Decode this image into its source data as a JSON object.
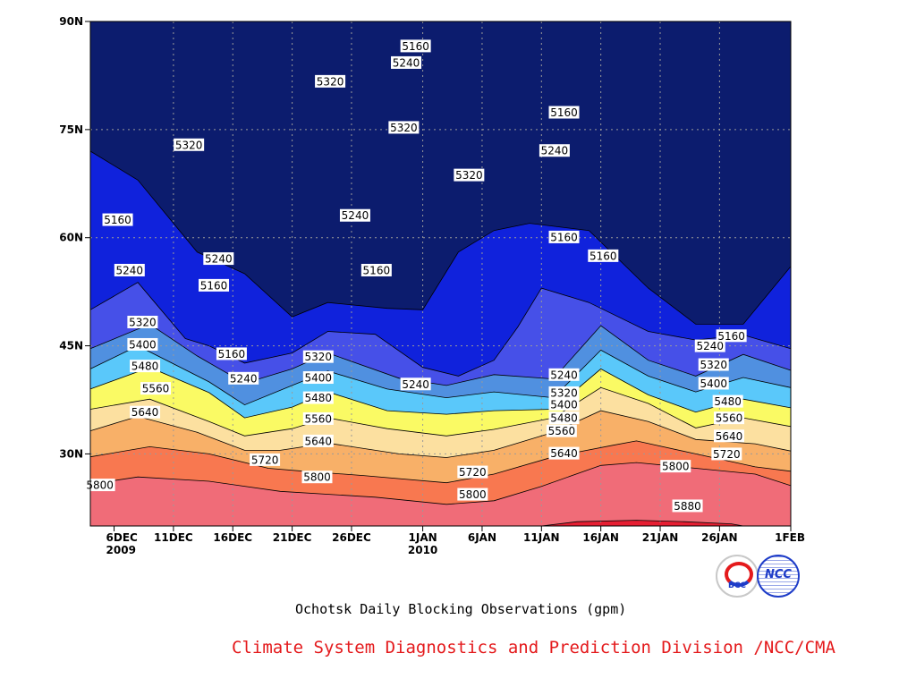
{
  "chart_data": {
    "type": "contour",
    "title": "",
    "xlabel": "",
    "ylabel": "",
    "x_tick_labels": [
      {
        "line1": "6DEC",
        "line2": "2009"
      },
      {
        "line1": "11DEC",
        "line2": ""
      },
      {
        "line1": "16DEC",
        "line2": ""
      },
      {
        "line1": "21DEC",
        "line2": ""
      },
      {
        "line1": "26DEC",
        "line2": ""
      },
      {
        "line1": "1JAN",
        "line2": "2010"
      },
      {
        "line1": "6JAN",
        "line2": ""
      },
      {
        "line1": "11JAN",
        "line2": ""
      },
      {
        "line1": "16JAN",
        "line2": ""
      },
      {
        "line1": "21JAN",
        "line2": ""
      },
      {
        "line1": "26JAN",
        "line2": ""
      },
      {
        "line1": "1FEB",
        "line2": ""
      }
    ],
    "x_tick_days": [
      6,
      11,
      16,
      21,
      26,
      32,
      37,
      42,
      47,
      52,
      57,
      63
    ],
    "xlim_days": [
      4,
      63
    ],
    "y_tick_labels": [
      "30N",
      "45N",
      "60N",
      "75N",
      "90N"
    ],
    "y_tick_values": [
      30,
      45,
      60,
      75,
      90
    ],
    "ylim": [
      20,
      90
    ],
    "grid": true,
    "levels": [
      5160,
      5240,
      5320,
      5400,
      5480,
      5560,
      5640,
      5720,
      5800,
      5880
    ],
    "colors": [
      "#0c1c6e",
      "#1022dc",
      "#4650e8",
      "#5090e0",
      "#5ac8fa",
      "#fafa64",
      "#fce0a0",
      "#f8b068",
      "#f87850",
      "#f06c78",
      "#e61e32"
    ],
    "boundaries": [
      {
        "level": 5880,
        "points": [
          [
            20,
            42
          ],
          [
            20.6,
            45
          ],
          [
            20.8,
            50
          ],
          [
            20.6,
            54
          ],
          [
            20.3,
            58
          ],
          [
            20,
            59
          ]
        ]
      },
      {
        "level": 5800,
        "points": [
          [
            25.8,
            4
          ],
          [
            26.8,
            8
          ],
          [
            26.2,
            14
          ],
          [
            24.8,
            20
          ],
          [
            24,
            28
          ],
          [
            23,
            34
          ],
          [
            23.5,
            38
          ],
          [
            25.5,
            42
          ],
          [
            28.4,
            47
          ],
          [
            28.8,
            50
          ],
          [
            28,
            55
          ],
          [
            27.2,
            60
          ],
          [
            25.6,
            63
          ]
        ]
      },
      {
        "level": 5720,
        "points": [
          [
            29.6,
            4
          ],
          [
            31,
            9
          ],
          [
            30,
            14
          ],
          [
            28,
            19
          ],
          [
            27.6,
            22
          ],
          [
            27,
            27
          ],
          [
            26,
            34
          ],
          [
            27.2,
            38
          ],
          [
            29.6,
            43
          ],
          [
            31.2,
            48
          ],
          [
            31.8,
            50
          ],
          [
            30,
            55
          ],
          [
            28.2,
            60
          ],
          [
            27.6,
            63
          ]
        ]
      },
      {
        "level": 5640,
        "points": [
          [
            33.2,
            4
          ],
          [
            35.2,
            8
          ],
          [
            33,
            13
          ],
          [
            30.5,
            17
          ],
          [
            30.5,
            20
          ],
          [
            31.5,
            24
          ],
          [
            30,
            30
          ],
          [
            29.5,
            34
          ],
          [
            30.5,
            38
          ],
          [
            33,
            43
          ],
          [
            36,
            47
          ],
          [
            34.5,
            51
          ],
          [
            32,
            55
          ],
          [
            31.4,
            60
          ],
          [
            30.4,
            63
          ]
        ]
      },
      {
        "level": 5560,
        "points": [
          [
            36.2,
            4
          ],
          [
            37.6,
            9
          ],
          [
            34.5,
            14
          ],
          [
            32.5,
            17
          ],
          [
            33.5,
            21
          ],
          [
            35,
            24
          ],
          [
            33.5,
            29
          ],
          [
            32.5,
            34
          ],
          [
            33.4,
            38
          ],
          [
            35,
            43
          ],
          [
            39.2,
            47
          ],
          [
            37,
            51
          ],
          [
            33.6,
            55
          ],
          [
            35,
            59
          ],
          [
            33.8,
            63
          ]
        ]
      },
      {
        "level": 5480,
        "points": [
          [
            39,
            4
          ],
          [
            42,
            9
          ],
          [
            38.5,
            14
          ],
          [
            35,
            17
          ],
          [
            36.5,
            21
          ],
          [
            38.6,
            24
          ],
          [
            36,
            29
          ],
          [
            35.5,
            34
          ],
          [
            36,
            38
          ],
          [
            36.2,
            43
          ],
          [
            41.8,
            47
          ],
          [
            38.2,
            51
          ],
          [
            35.8,
            55
          ],
          [
            37.6,
            59
          ],
          [
            36.4,
            63
          ]
        ]
      },
      {
        "level": 5400,
        "points": [
          [
            41.8,
            4
          ],
          [
            45,
            8
          ],
          [
            40,
            14
          ],
          [
            36.8,
            17
          ],
          [
            39.5,
            21
          ],
          [
            41.5,
            24
          ],
          [
            39,
            29
          ],
          [
            37.8,
            34
          ],
          [
            38.6,
            38
          ],
          [
            37.8,
            43
          ],
          [
            44.4,
            47
          ],
          [
            40.8,
            51
          ],
          [
            38.6,
            55
          ],
          [
            40.6,
            59
          ],
          [
            39.2,
            63
          ]
        ]
      },
      {
        "level": 5320,
        "points": [
          [
            44.6,
            4
          ],
          [
            48,
            9
          ],
          [
            43.6,
            13
          ],
          [
            39.8,
            17
          ],
          [
            41.8,
            21
          ],
          [
            44,
            24
          ],
          [
            40.5,
            30
          ],
          [
            39.5,
            34
          ],
          [
            41,
            38
          ],
          [
            40.4,
            43
          ],
          [
            47.8,
            47
          ],
          [
            43,
            51
          ],
          [
            40.8,
            55
          ],
          [
            43.8,
            59
          ],
          [
            41.6,
            63
          ]
        ]
      },
      {
        "level": 5240,
        "points": [
          [
            50,
            4
          ],
          [
            53.8,
            8
          ],
          [
            46,
            12
          ],
          [
            45,
            14
          ],
          [
            42.6,
            17
          ],
          [
            44,
            21
          ],
          [
            47,
            24
          ],
          [
            46.6,
            28
          ],
          [
            42,
            32
          ],
          [
            40.8,
            35
          ],
          [
            43,
            38
          ],
          [
            47.6,
            40
          ],
          [
            53,
            42
          ],
          [
            51,
            46
          ],
          [
            47,
            51
          ],
          [
            45.8,
            55
          ],
          [
            46.5,
            59
          ],
          [
            44.6,
            63
          ]
        ]
      },
      {
        "level": 5160,
        "points": [
          [
            72,
            4
          ],
          [
            68,
            8
          ],
          [
            58,
            13
          ],
          [
            55,
            17
          ],
          [
            49,
            21
          ],
          [
            51,
            24
          ],
          [
            50.2,
            29
          ],
          [
            50,
            32
          ],
          [
            58,
            35
          ],
          [
            61,
            38
          ],
          [
            62,
            41
          ],
          [
            61,
            46
          ],
          [
            53,
            51
          ],
          [
            48,
            55
          ],
          [
            48,
            59
          ],
          [
            56,
            63
          ]
        ]
      }
    ],
    "labels": [
      {
        "text": "5160",
        "x": 6.3,
        "y": 62.5
      },
      {
        "text": "5240",
        "x": 7.3,
        "y": 55.5
      },
      {
        "text": "5320",
        "x": 8.4,
        "y": 48.3
      },
      {
        "text": "5400",
        "x": 8.4,
        "y": 45.2
      },
      {
        "text": "5480",
        "x": 8.6,
        "y": 42.2
      },
      {
        "text": "5560",
        "x": 9.5,
        "y": 39.1
      },
      {
        "text": "5640",
        "x": 8.6,
        "y": 35.8
      },
      {
        "text": "5800",
        "x": 4.8,
        "y": 25.7
      },
      {
        "text": "5320",
        "x": 12.3,
        "y": 72.9
      },
      {
        "text": "5240",
        "x": 14.8,
        "y": 57.1
      },
      {
        "text": "5160",
        "x": 14.4,
        "y": 53.4
      },
      {
        "text": "5160",
        "x": 15.9,
        "y": 43.9
      },
      {
        "text": "5240",
        "x": 16.9,
        "y": 40.5
      },
      {
        "text": "5720",
        "x": 18.7,
        "y": 29.2
      },
      {
        "text": "5320",
        "x": 24.2,
        "y": 81.7
      },
      {
        "text": "5320",
        "x": 23.2,
        "y": 43.5
      },
      {
        "text": "5400",
        "x": 23.2,
        "y": 40.6
      },
      {
        "text": "5480",
        "x": 23.2,
        "y": 37.8
      },
      {
        "text": "5560",
        "x": 23.2,
        "y": 34.9
      },
      {
        "text": "5640",
        "x": 23.2,
        "y": 31.8
      },
      {
        "text": "5800",
        "x": 23.1,
        "y": 26.8
      },
      {
        "text": "5240",
        "x": 26.3,
        "y": 63.1
      },
      {
        "text": "5160",
        "x": 28.1,
        "y": 55.5
      },
      {
        "text": "5320",
        "x": 30.4,
        "y": 75.3
      },
      {
        "text": "5240",
        "x": 30.6,
        "y": 84.3
      },
      {
        "text": "5160",
        "x": 31.4,
        "y": 86.6
      },
      {
        "text": "5240",
        "x": 31.4,
        "y": 39.7
      },
      {
        "text": "5320",
        "x": 35.9,
        "y": 68.7
      },
      {
        "text": "5720",
        "x": 36.2,
        "y": 27.5
      },
      {
        "text": "5800",
        "x": 36.2,
        "y": 24.4
      },
      {
        "text": "5160",
        "x": 43.9,
        "y": 77.4
      },
      {
        "text": "5240",
        "x": 43.1,
        "y": 72.1
      },
      {
        "text": "5160",
        "x": 43.9,
        "y": 60.1
      },
      {
        "text": "5160",
        "x": 47.2,
        "y": 57.5
      },
      {
        "text": "5240",
        "x": 43.9,
        "y": 41.0
      },
      {
        "text": "5320",
        "x": 43.9,
        "y": 38.5
      },
      {
        "text": "5400",
        "x": 43.9,
        "y": 36.9
      },
      {
        "text": "5480",
        "x": 43.9,
        "y": 35.0
      },
      {
        "text": "5560",
        "x": 43.7,
        "y": 33.2
      },
      {
        "text": "5640",
        "x": 43.9,
        "y": 30.1
      },
      {
        "text": "5800",
        "x": 53.3,
        "y": 28.3
      },
      {
        "text": "5880",
        "x": 54.3,
        "y": 22.8
      },
      {
        "text": "5240",
        "x": 56.2,
        "y": 45.0
      },
      {
        "text": "5160",
        "x": 58.0,
        "y": 46.4
      },
      {
        "text": "5320",
        "x": 56.5,
        "y": 42.4
      },
      {
        "text": "5400",
        "x": 56.5,
        "y": 39.8
      },
      {
        "text": "5480",
        "x": 57.7,
        "y": 37.3
      },
      {
        "text": "5560",
        "x": 57.8,
        "y": 35.0
      },
      {
        "text": "5640",
        "x": 57.8,
        "y": 32.5
      },
      {
        "text": "5720",
        "x": 57.6,
        "y": 30.0
      }
    ]
  },
  "caption": "Ochotsk Daily Blocking Observations (gpm)",
  "footer": "Climate System Diagnostics and Prediction Division /NCC/CMA",
  "logos": {
    "bcc": "BCC",
    "ncc": "NCC"
  }
}
